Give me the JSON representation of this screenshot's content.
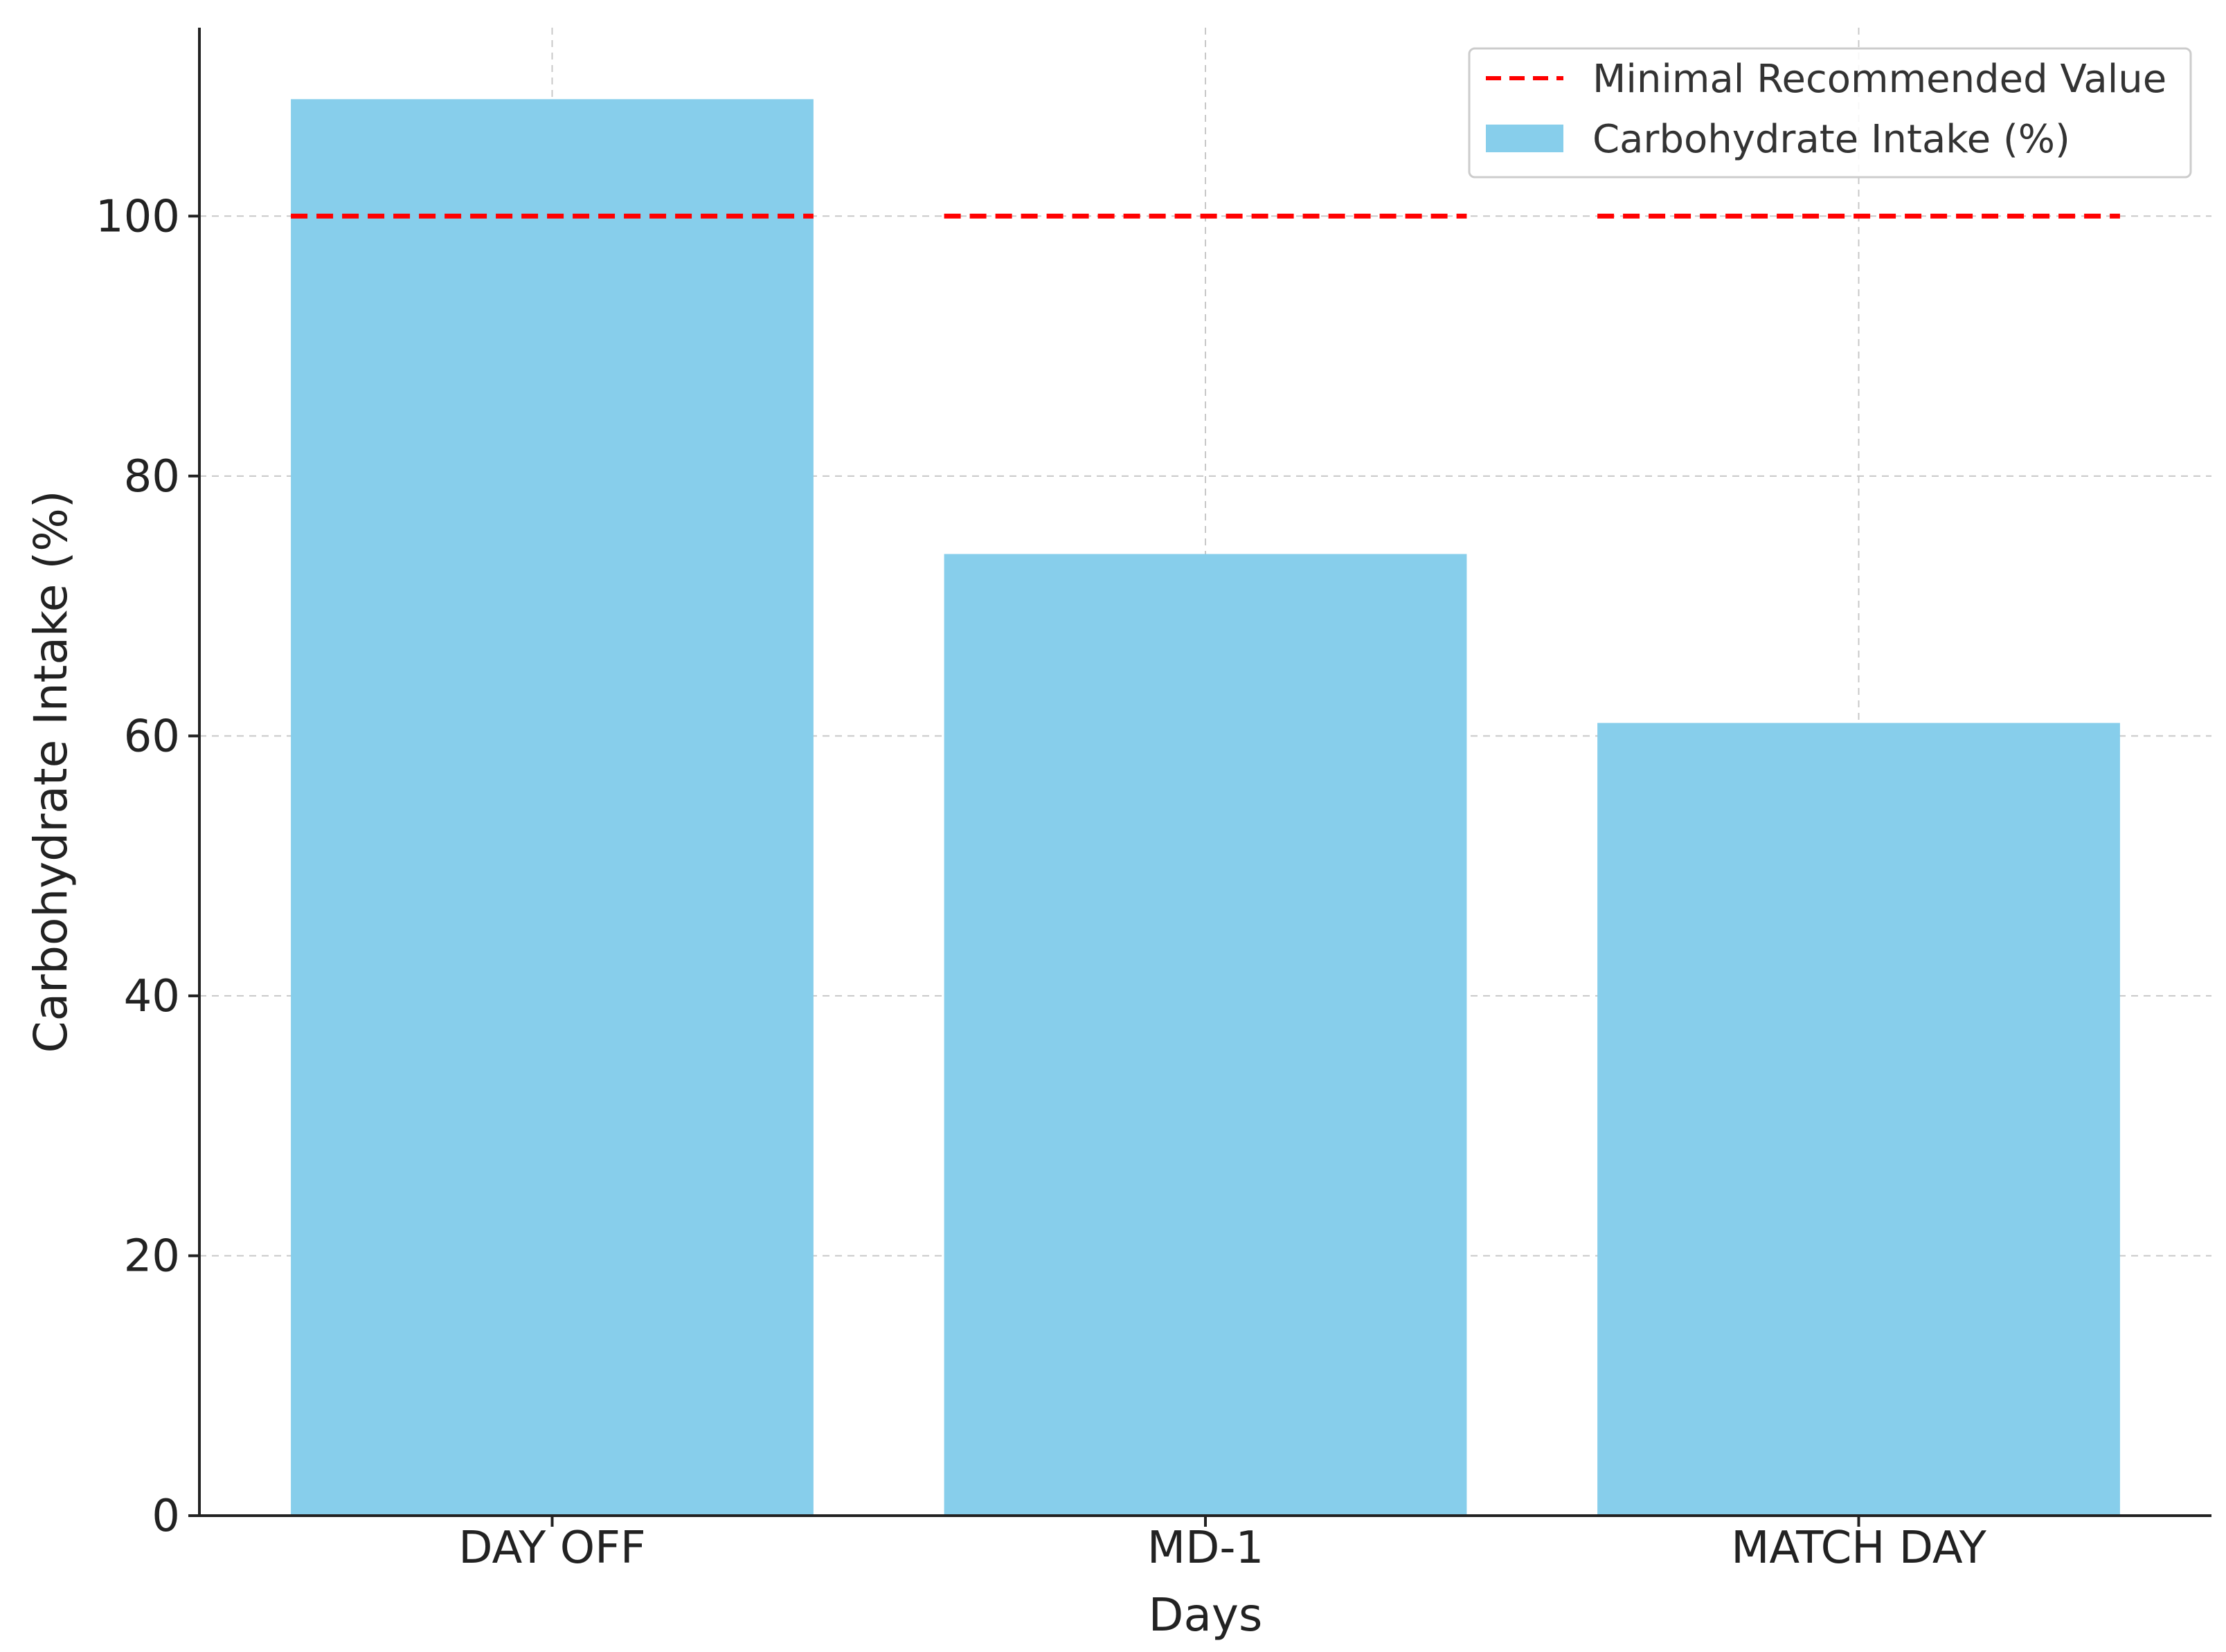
{
  "chart_data": {
    "type": "bar",
    "title": "",
    "xlabel": "Days",
    "ylabel": "Carbohydrate Intake (%)",
    "categories": [
      "DAY OFF",
      "MD-1",
      "MATCH DAY"
    ],
    "series": [
      {
        "name": "Carbohydrate Intake (%)",
        "type": "bar",
        "values": [
          109,
          74,
          61
        ],
        "color": "#87CEEB"
      },
      {
        "name": "Minimal Recommended Value",
        "type": "line",
        "style": "dashed",
        "values": [
          100,
          100,
          100
        ],
        "color": "#FF0000"
      }
    ],
    "ylim": [
      0,
      114.5
    ],
    "yticks": [
      0,
      20,
      40,
      60,
      80,
      100
    ],
    "ytick_labels": [
      "0",
      "20",
      "40",
      "60",
      "80",
      "100"
    ],
    "grid": true,
    "legend": {
      "position": "top-right",
      "entries": [
        "Minimal Recommended Value",
        "Carbohydrate Intake (%)"
      ]
    }
  }
}
